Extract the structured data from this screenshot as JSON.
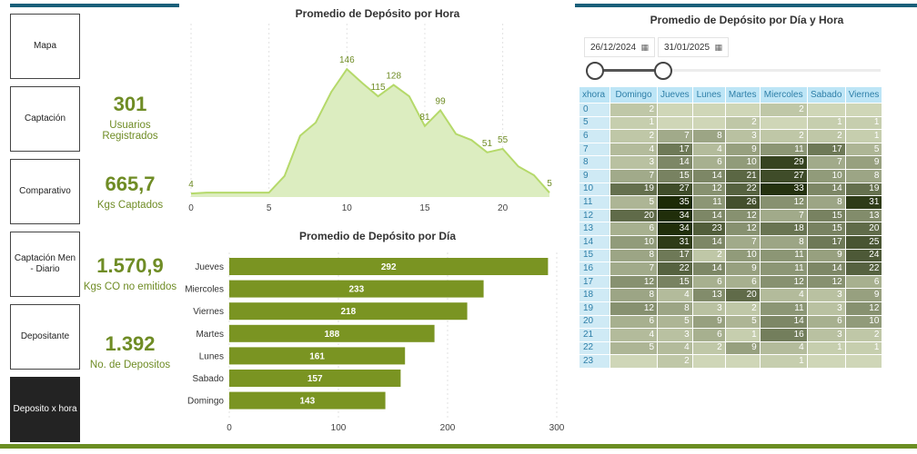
{
  "nav": [
    {
      "label": "Mapa",
      "active": false
    },
    {
      "label": "Captación",
      "active": false
    },
    {
      "label": "Comparativo",
      "active": false
    },
    {
      "label": "Captación Men - Diario",
      "active": false
    },
    {
      "label": "Depositante",
      "active": false
    },
    {
      "label": "Deposito x hora",
      "active": true
    }
  ],
  "kpis": [
    {
      "value": "301",
      "label": "Usuarios Registrados"
    },
    {
      "value": "665,7",
      "label": "Kgs Captados"
    },
    {
      "value": "1.570,9",
      "label": "Kgs CO no emitidos"
    },
    {
      "value": "1.392",
      "label": "No. de Depositos"
    }
  ],
  "filters": {
    "date_from": "26/12/2024",
    "date_to": "31/01/2025",
    "slider_range": [
      0,
      0.24
    ]
  },
  "colors": {
    "accent": "#6f8c25",
    "bar": "#7a9422",
    "area_fill": "#dcedc0",
    "area_line": "#b5d96a",
    "header": "#bde5f6",
    "topbar": "#1a5f7a"
  },
  "chart_data": [
    {
      "type": "area",
      "title": "Promedio de Depósito por Hora",
      "x": [
        0,
        1,
        2,
        3,
        4,
        5,
        6,
        7,
        8,
        9,
        10,
        11,
        12,
        13,
        14,
        15,
        16,
        17,
        18,
        19,
        20,
        21,
        22,
        23
      ],
      "values": [
        4,
        5,
        5,
        5,
        5,
        5,
        24,
        70,
        85,
        120,
        146,
        130,
        115,
        128,
        115,
        81,
        99,
        72,
        65,
        51,
        55,
        35,
        25,
        5
      ],
      "data_labels": [
        {
          "x": 0,
          "y": 4,
          "text": "4"
        },
        {
          "x": 10,
          "y": 146,
          "text": "146"
        },
        {
          "x": 12,
          "y": 115,
          "text": "115"
        },
        {
          "x": 13,
          "y": 128,
          "text": "128"
        },
        {
          "x": 15,
          "y": 81,
          "text": "81"
        },
        {
          "x": 16,
          "y": 99,
          "text": "99"
        },
        {
          "x": 19,
          "y": 51,
          "text": "51"
        },
        {
          "x": 20,
          "y": 55,
          "text": "55"
        },
        {
          "x": 23,
          "y": 5,
          "text": "5"
        }
      ],
      "xticks": [
        0,
        5,
        10,
        15,
        20
      ],
      "xlim": [
        0,
        23
      ],
      "ylim": [
        0,
        160
      ],
      "grid": "vertical dashed"
    },
    {
      "type": "bar",
      "orientation": "horizontal",
      "title": "Promedio de Depósito por Día",
      "categories": [
        "Jueves",
        "Miercoles",
        "Viernes",
        "Martes",
        "Lunes",
        "Sabado",
        "Domingo"
      ],
      "values": [
        292,
        233,
        218,
        188,
        161,
        157,
        143
      ],
      "xticks": [
        0,
        100,
        200,
        300
      ],
      "xlim": [
        0,
        300
      ],
      "grid": "vertical dashed"
    },
    {
      "type": "heatmap",
      "title": "Promedio de Depósito por Día y Hora",
      "row_header": "xhora",
      "columns": [
        "Domingo",
        "Jueves",
        "Lunes",
        "Martes",
        "Miercoles",
        "Sabado",
        "Viernes"
      ],
      "rows": [
        {
          "hour": "0",
          "values": [
            2,
            null,
            null,
            null,
            2,
            null,
            null
          ]
        },
        {
          "hour": "5",
          "values": [
            1,
            null,
            null,
            2,
            null,
            1,
            1
          ]
        },
        {
          "hour": "6",
          "values": [
            2,
            7,
            8,
            3,
            2,
            2,
            1
          ]
        },
        {
          "hour": "7",
          "values": [
            4,
            17,
            4,
            9,
            11,
            17,
            5
          ]
        },
        {
          "hour": "8",
          "values": [
            3,
            14,
            6,
            10,
            29,
            7,
            9
          ]
        },
        {
          "hour": "9",
          "values": [
            7,
            15,
            14,
            21,
            27,
            10,
            8
          ]
        },
        {
          "hour": "10",
          "values": [
            19,
            27,
            12,
            22,
            33,
            14,
            19
          ]
        },
        {
          "hour": "11",
          "values": [
            5,
            35,
            11,
            26,
            12,
            8,
            31
          ]
        },
        {
          "hour": "12",
          "values": [
            20,
            34,
            14,
            12,
            7,
            15,
            13
          ]
        },
        {
          "hour": "13",
          "values": [
            6,
            34,
            23,
            12,
            18,
            15,
            20
          ]
        },
        {
          "hour": "14",
          "values": [
            10,
            31,
            14,
            7,
            8,
            17,
            25
          ]
        },
        {
          "hour": "15",
          "values": [
            8,
            17,
            2,
            10,
            11,
            9,
            24
          ]
        },
        {
          "hour": "16",
          "values": [
            7,
            22,
            14,
            9,
            11,
            14,
            22
          ]
        },
        {
          "hour": "17",
          "values": [
            12,
            15,
            6,
            6,
            12,
            12,
            6
          ]
        },
        {
          "hour": "18",
          "values": [
            8,
            4,
            13,
            20,
            4,
            3,
            9
          ]
        },
        {
          "hour": "19",
          "values": [
            12,
            8,
            3,
            2,
            11,
            3,
            12
          ]
        },
        {
          "hour": "20",
          "values": [
            6,
            5,
            9,
            5,
            14,
            6,
            10
          ]
        },
        {
          "hour": "21",
          "values": [
            4,
            3,
            6,
            1,
            16,
            3,
            2
          ]
        },
        {
          "hour": "22",
          "values": [
            5,
            4,
            2,
            9,
            4,
            1,
            1
          ]
        },
        {
          "hour": "23",
          "values": [
            null,
            2,
            null,
            null,
            1,
            null,
            null
          ]
        }
      ],
      "color_scale": [
        "#cfd6b7",
        "#1c2a06"
      ]
    }
  ]
}
